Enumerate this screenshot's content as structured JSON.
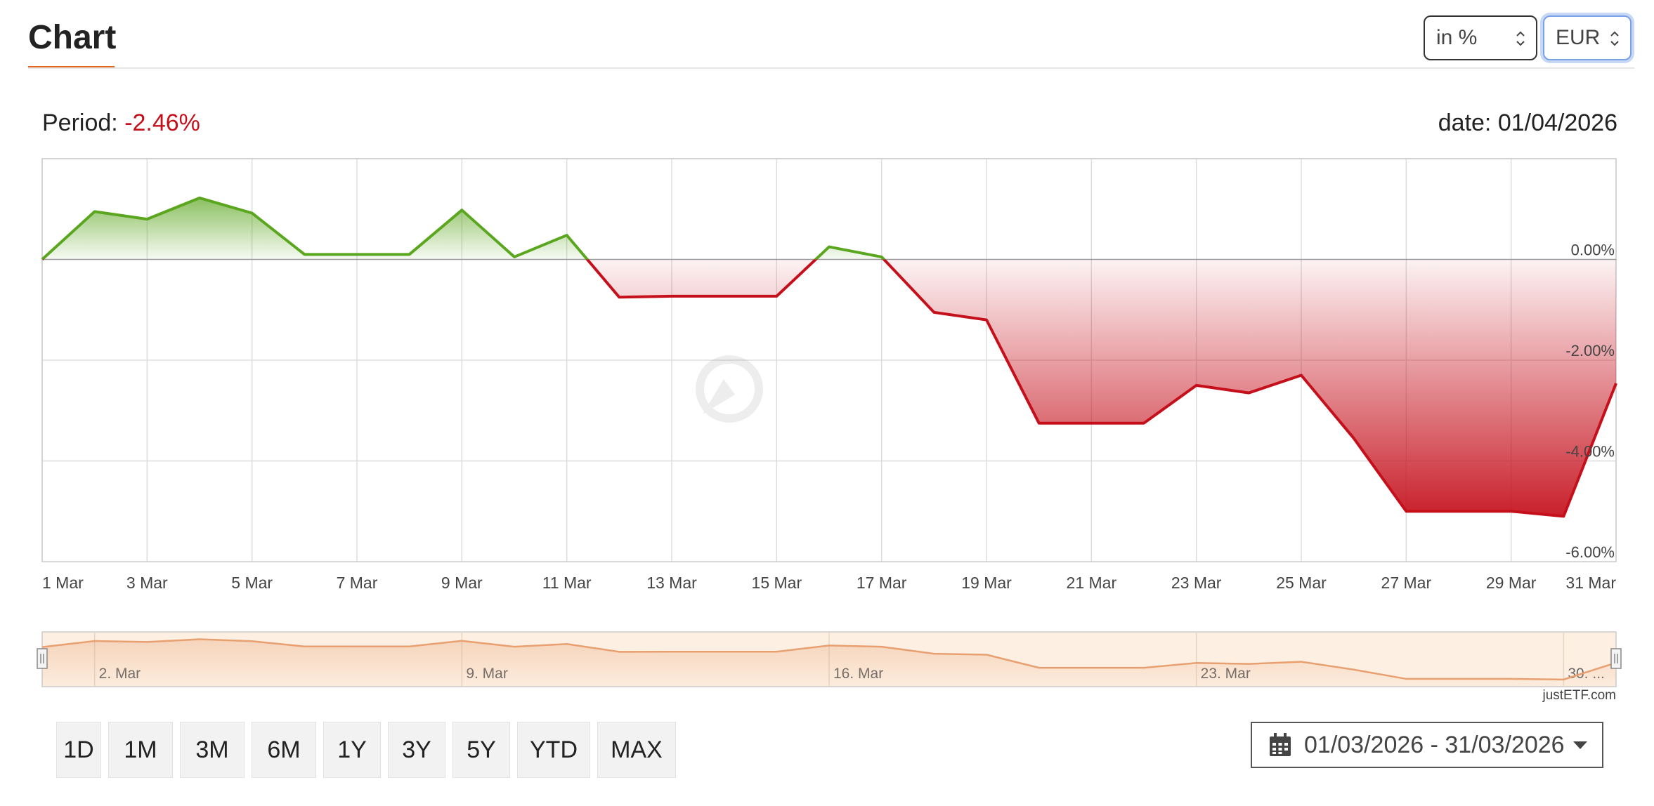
{
  "header": {
    "title": "Chart"
  },
  "controls": {
    "unit_value": "in %",
    "currency_value": "EUR"
  },
  "summary": {
    "period_label": "Period:",
    "period_value": "-2.46%",
    "date_label": "date:",
    "date_value": "01/04/2026"
  },
  "colors": {
    "accent": "#e8641b",
    "positive": "#5aa61e",
    "negative": "#c5101c",
    "navigator_line": "#e8a070",
    "navigator_bg": "#fdf0e3"
  },
  "chart_data": {
    "type": "area",
    "title": "",
    "xlabel": "",
    "ylabel": "",
    "ylim": [
      -6,
      2
    ],
    "grid": true,
    "watermark": "justETF",
    "x": [
      "1 Mar",
      "2 Mar",
      "3 Mar",
      "4 Mar",
      "5 Mar",
      "6 Mar",
      "7 Mar",
      "8 Mar",
      "9 Mar",
      "10 Mar",
      "11 Mar",
      "12 Mar",
      "13 Mar",
      "14 Mar",
      "15 Mar",
      "16 Mar",
      "17 Mar",
      "18 Mar",
      "19 Mar",
      "20 Mar",
      "21 Mar",
      "22 Mar",
      "23 Mar",
      "24 Mar",
      "25 Mar",
      "26 Mar",
      "27 Mar",
      "28 Mar",
      "29 Mar",
      "30 Mar",
      "31 Mar"
    ],
    "series": [
      {
        "values": [
          0.0,
          0.95,
          0.8,
          1.22,
          0.92,
          0.1,
          0.1,
          0.1,
          0.98,
          0.05,
          0.48,
          -0.75,
          -0.73,
          -0.73,
          -0.73,
          0.25,
          0.05,
          -1.05,
          -1.2,
          -3.25,
          -3.25,
          -3.25,
          -2.5,
          -2.65,
          -2.3,
          -3.55,
          -5.0,
          -5.0,
          -5.0,
          -5.1,
          -2.46
        ]
      }
    ],
    "x_ticks": [
      "1 Mar",
      "3 Mar",
      "5 Mar",
      "7 Mar",
      "9 Mar",
      "11 Mar",
      "13 Mar",
      "15 Mar",
      "17 Mar",
      "19 Mar",
      "21 Mar",
      "23 Mar",
      "25 Mar",
      "27 Mar",
      "29 Mar",
      "31 Mar"
    ],
    "y_ticks": [
      "0.00%",
      "-2.00%",
      "-4.00%",
      "-6.00%"
    ]
  },
  "navigator": {
    "labels": [
      "2. Mar",
      "9. Mar",
      "16. Mar",
      "23. Mar",
      "30. ..."
    ],
    "credit": "justETF.com"
  },
  "range_buttons": [
    "1D",
    "1M",
    "3M",
    "6M",
    "1Y",
    "3Y",
    "5Y",
    "YTD",
    "MAX"
  ],
  "date_range": {
    "value": "01/03/2026 - 31/03/2026"
  }
}
